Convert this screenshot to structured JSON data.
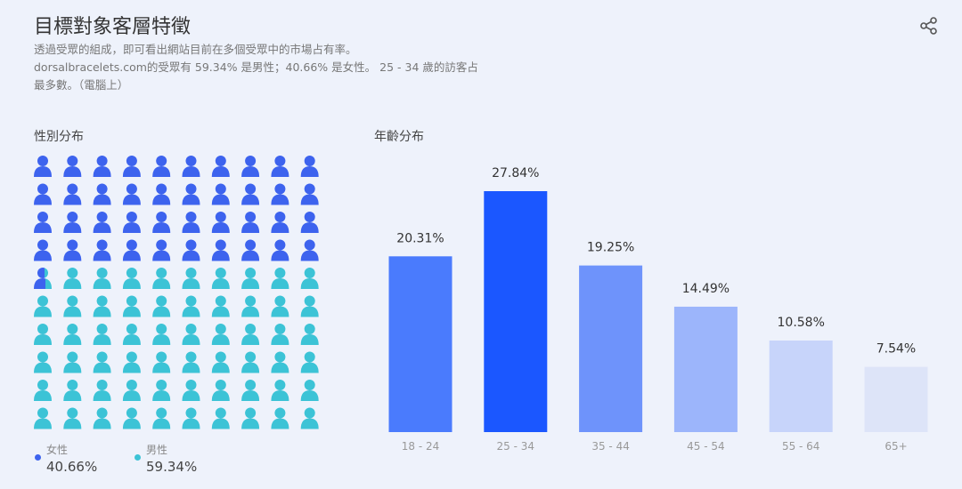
{
  "header": {
    "title": "目標對象客層特徵",
    "desc_lines": [
      "透過受眾的組成，即可看出網站目前在多個受眾中的市場占有率。",
      "dorsalbracelets.com的受眾有 59.34% 是男性；40.66% 是女性。 25 - 34 歲的訪客占",
      "最多數。（電腦上）"
    ],
    "share_icon": "share-icon"
  },
  "gender": {
    "title": "性別分布",
    "female_label": "女性",
    "female_value": "40.66%",
    "male_label": "男性",
    "male_value": "59.34%",
    "female_pct": 40.66,
    "colors": {
      "female": "#3d63ee",
      "male": "#3cc3d6"
    }
  },
  "chart_data": {
    "type": "bar",
    "title": "年齡分布",
    "categories": [
      "18 - 24",
      "25 - 34",
      "35 - 44",
      "45 - 54",
      "55 - 64",
      "65+"
    ],
    "values": [
      20.31,
      27.84,
      19.25,
      14.49,
      10.58,
      7.54
    ],
    "labels": [
      "20.31%",
      "27.84%",
      "19.25%",
      "14.49%",
      "10.58%",
      "7.54%"
    ],
    "colors": [
      "#4a7bfd",
      "#1b57ff",
      "#6e93fb",
      "#9cb5fb",
      "#c7d4fa",
      "#dde4f8"
    ],
    "ylim": [
      0,
      27.84
    ],
    "grid": false
  }
}
